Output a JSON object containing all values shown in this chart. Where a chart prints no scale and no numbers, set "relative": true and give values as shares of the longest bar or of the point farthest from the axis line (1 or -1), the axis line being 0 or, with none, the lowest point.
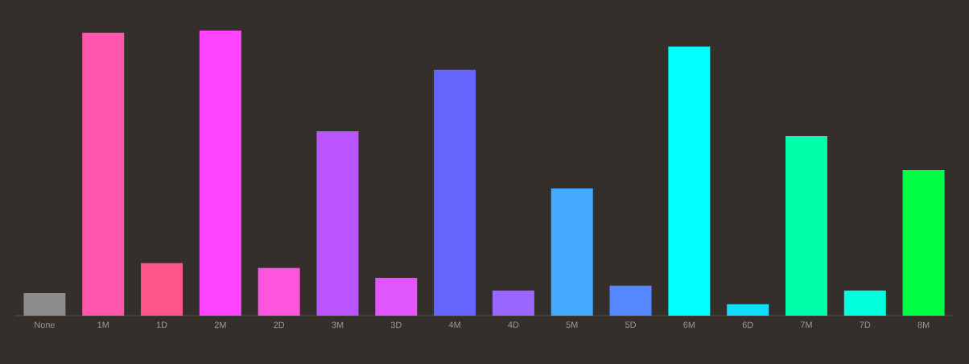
{
  "chart_data": {
    "type": "bar",
    "relative": true,
    "categories": [
      "None",
      "1M",
      "1D",
      "2M",
      "2D",
      "3M",
      "3D",
      "4M",
      "4D",
      "5M",
      "5D",
      "6M",
      "6D",
      "7M",
      "7D",
      "8M"
    ],
    "values": [
      0.079,
      0.992,
      0.184,
      1,
      0.167,
      0.647,
      0.133,
      0.862,
      0.088,
      0.446,
      0.105,
      0.944,
      0.04,
      0.63,
      0.088,
      0.511
    ],
    "colors": [
      "#8c8c8c",
      "#ff55aa",
      "#ff5588",
      "#ff44ff",
      "#ff55dd",
      "#bb55ff",
      "#e055ff",
      "#6666ff",
      "#9966ff",
      "#44aaff",
      "#5588ff",
      "#00ffff",
      "#11ddff",
      "#00ffaa",
      "#00ffdd",
      "#00ff44"
    ]
  }
}
